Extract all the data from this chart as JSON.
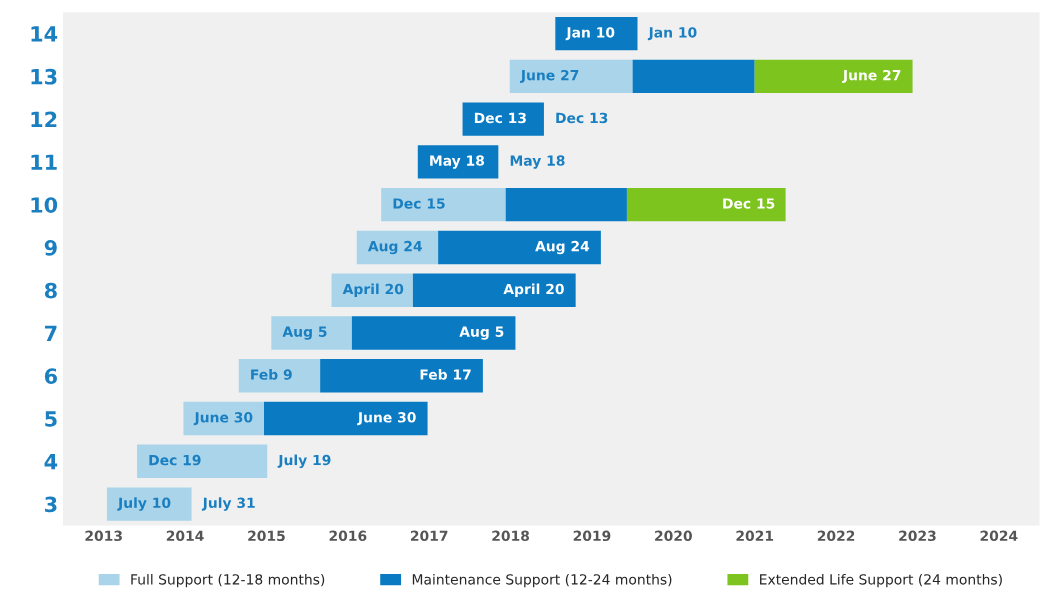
{
  "chart_data": {
    "type": "bar",
    "orientation": "horizontal",
    "categories": [
      "14",
      "13",
      "12",
      "11",
      "10",
      "9",
      "8",
      "7",
      "6",
      "5",
      "4",
      "3"
    ],
    "series": [
      {
        "name": "Full Support (12-18 months)",
        "color": "#a9d4ea",
        "base": [
          null,
          2018.49,
          null,
          null,
          2016.91,
          2016.61,
          2016.3,
          2015.56,
          2015.16,
          2014.48,
          2013.91,
          2013.54
        ],
        "values": [
          null,
          1.51,
          null,
          null,
          1.53,
          1.0,
          1.0,
          0.99,
          1.0,
          0.99,
          1.6,
          1.04
        ]
      },
      {
        "name": "Maintenance Support (12-24 months)",
        "color": "#0a7bc2",
        "base": [
          2019.05,
          2020.0,
          2017.91,
          2017.36,
          2018.44,
          2017.61,
          2017.3,
          2016.55,
          2016.16,
          2015.47,
          null,
          null
        ],
        "values": [
          1.01,
          1.5,
          1.0,
          0.99,
          1.49,
          2.0,
          2.0,
          2.01,
          2.0,
          2.01,
          null,
          null
        ]
      },
      {
        "name": "Extended Life Support (24 months)",
        "color": "#7dc41f",
        "base": [
          null,
          2021.5,
          null,
          null,
          2019.93,
          null,
          null,
          null,
          null,
          null,
          null,
          null
        ],
        "values": [
          null,
          1.94,
          null,
          null,
          1.95,
          null,
          null,
          null,
          null,
          null,
          null,
          null
        ]
      }
    ],
    "xlim": [
      2013,
      2025
    ],
    "xticks": [
      {
        "value": 2013.5,
        "label": "2013"
      },
      {
        "value": 2014.5,
        "label": "2014"
      },
      {
        "value": 2015.5,
        "label": "2015"
      },
      {
        "value": 2016.5,
        "label": "2016"
      },
      {
        "value": 2017.5,
        "label": "2017"
      },
      {
        "value": 2018.5,
        "label": "2018"
      },
      {
        "value": 2019.5,
        "label": "2019"
      },
      {
        "value": 2020.5,
        "label": "2020"
      },
      {
        "value": 2021.5,
        "label": "2021"
      },
      {
        "value": 2022.5,
        "label": "2022"
      },
      {
        "value": 2023.5,
        "label": "2023"
      },
      {
        "value": 2024.5,
        "label": "2024"
      }
    ],
    "legend": "bottom",
    "annotations": [
      {
        "text": "Jan 10",
        "x": 2019.05,
        "y": "14"
      },
      {
        "text": "Jan 10",
        "x": 2020.06,
        "y": "14"
      },
      {
        "text": "June 27",
        "x": 2018.49,
        "y": "13"
      },
      {
        "text": "June 27",
        "x": 2023.44,
        "y": "13"
      },
      {
        "text": "Dec 13",
        "x": 2017.91,
        "y": "12"
      },
      {
        "text": "Dec 13",
        "x": 2018.91,
        "y": "12"
      },
      {
        "text": "May 18",
        "x": 2017.36,
        "y": "11"
      },
      {
        "text": "May 18",
        "x": 2018.35,
        "y": "11"
      },
      {
        "text": "Dec 15",
        "x": 2016.91,
        "y": "10"
      },
      {
        "text": "Dec 15",
        "x": 2021.89,
        "y": "10"
      },
      {
        "text": "Aug 24",
        "x": 2016.61,
        "y": "9"
      },
      {
        "text": "Aug 24",
        "x": 2019.61,
        "y": "9"
      },
      {
        "text": "April 20",
        "x": 2016.3,
        "y": "8"
      },
      {
        "text": "April 20",
        "x": 2019.3,
        "y": "8"
      },
      {
        "text": "Aug 5",
        "x": 2015.56,
        "y": "7"
      },
      {
        "text": "Aug 5",
        "x": 2018.56,
        "y": "7"
      },
      {
        "text": "Feb 9",
        "x": 2015.16,
        "y": "6"
      },
      {
        "text": "Feb 17",
        "x": 2018.16,
        "y": "6"
      },
      {
        "text": "June 30",
        "x": 2014.48,
        "y": "5"
      },
      {
        "text": "June 30",
        "x": 2017.48,
        "y": "5"
      },
      {
        "text": "Dec 19",
        "x": 2013.91,
        "y": "4"
      },
      {
        "text": "July 19",
        "x": 2015.51,
        "y": "4"
      },
      {
        "text": "July 10",
        "x": 2013.54,
        "y": "3"
      },
      {
        "text": "July 31",
        "x": 2014.58,
        "y": "3"
      }
    ]
  }
}
